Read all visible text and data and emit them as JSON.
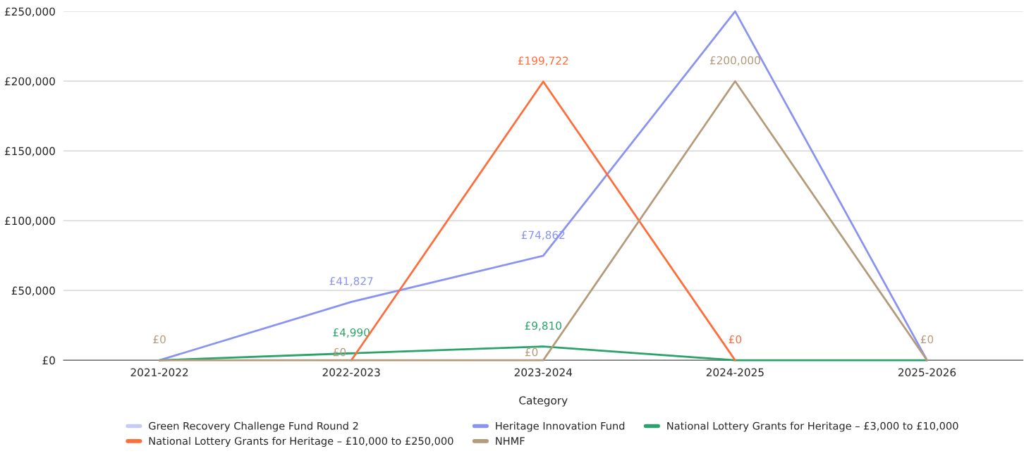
{
  "chart_data": {
    "type": "line",
    "xlabel": "Category",
    "categories": [
      "2021-2022",
      "2022-2023",
      "2023-2024",
      "2024-2025",
      "2025-2026"
    ],
    "series": [
      {
        "name": "Green Recovery Challenge Fund Round 2",
        "color": "#c6cbf3",
        "values": [
          null,
          null,
          null,
          null,
          null
        ]
      },
      {
        "name": "Heritage Innovation Fund",
        "color": "#8a94f0",
        "values": [
          0,
          41827,
          74862,
          250000,
          0
        ],
        "value_labels": [
          null,
          "£41,827",
          "£74,862",
          null,
          null
        ]
      },
      {
        "name": "National Lottery Grants for Heritage – £3,000 to £10,000",
        "color": "#2aa36b",
        "values": [
          0,
          4990,
          9810,
          0,
          0
        ],
        "value_labels": [
          null,
          "£4,990",
          "£9,810",
          null,
          null
        ]
      },
      {
        "name": "National Lottery Grants for Heritage – £10,000 to £250,000",
        "color": "#ff6d3b",
        "values": [
          null,
          0,
          199722,
          0,
          null
        ],
        "value_labels": [
          null,
          null,
          "£199,722",
          "£0",
          null
        ]
      },
      {
        "name": "NHMF",
        "color": "#b39b7c",
        "values": [
          0,
          0,
          0,
          200000,
          0
        ],
        "value_labels": [
          "£0",
          "£0",
          "£0",
          "£200,000",
          "£0"
        ]
      }
    ],
    "ylim": [
      0,
      250000
    ],
    "yticks": [
      {
        "value": 0,
        "label": "£0"
      },
      {
        "value": 50000,
        "label": "£50,000"
      },
      {
        "value": 100000,
        "label": "£100,000"
      },
      {
        "value": 150000,
        "label": "£150,000"
      },
      {
        "value": 200000,
        "label": "£200,000"
      },
      {
        "value": 250000,
        "label": "£250,000"
      }
    ],
    "grid": "y",
    "legend": "bottom",
    "marker": "none",
    "line_style": "solid"
  }
}
